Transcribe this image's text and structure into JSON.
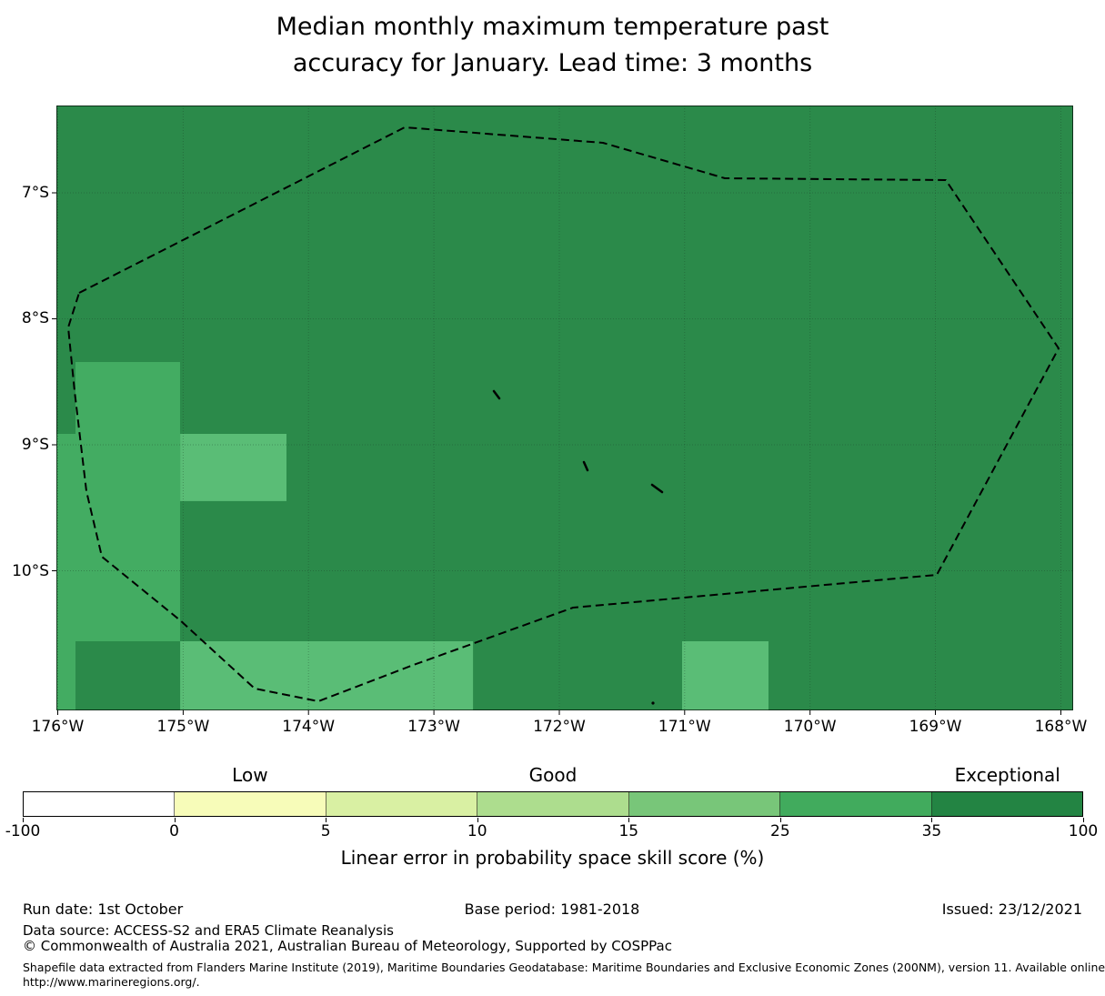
{
  "title": {
    "line1": "Median monthly maximum temperature past",
    "line2": "accuracy for January. Lead time: 3 months"
  },
  "chart_data": {
    "type": "heatmap",
    "title": "Median monthly maximum temperature past accuracy for January. Lead time: 3 months",
    "x_ticks": [
      {
        "label": "176°W",
        "f": 0.0013
      },
      {
        "label": "175°W",
        "f": 0.1247
      },
      {
        "label": "174°W",
        "f": 0.2479
      },
      {
        "label": "173°W",
        "f": 0.3713
      },
      {
        "label": "172°W",
        "f": 0.4946
      },
      {
        "label": "171°W",
        "f": 0.6179
      },
      {
        "label": "170°W",
        "f": 0.7412
      },
      {
        "label": "169°W",
        "f": 0.8645
      },
      {
        "label": "168°W",
        "f": 0.9879
      }
    ],
    "y_ticks": [
      {
        "label": "7°S",
        "f": 0.1444
      },
      {
        "label": "8°S",
        "f": 0.3526
      },
      {
        "label": "9°S",
        "f": 0.5609
      },
      {
        "label": "10°S",
        "f": 0.7692
      }
    ],
    "background": {
      "bin": "35-100",
      "skill_label": "Exceptional",
      "color": "#2b8a4a"
    },
    "cells": [
      {
        "x0": 0.0,
        "y0": 0.5429,
        "x1": 0.0188,
        "y1": 1.0,
        "bin": "25-35",
        "color": "#43ac62",
        "lon": "176.0-175.9°W",
        "lat": "8.9-11.1°S"
      },
      {
        "x0": 0.0188,
        "y0": 0.4241,
        "x1": 0.1217,
        "y1": 0.8857,
        "bin": "25-35",
        "color": "#43ac62",
        "lon": "175.9-175.0°W",
        "lat": "8.3-10.6°S"
      },
      {
        "x0": 0.1217,
        "y0": 0.5429,
        "x1": 0.2263,
        "y1": 0.6541,
        "bin": "15-25",
        "color": "#5abd76",
        "lon": "175.0-174.2°W",
        "lat": "8.9-9.5°S"
      },
      {
        "x0": 0.1217,
        "y0": 0.8857,
        "x1": 0.4097,
        "y1": 1.0,
        "bin": "15-25",
        "color": "#5abd76",
        "lon": "175.0-172.7°W",
        "lat": "10.6-11.1°S"
      },
      {
        "x0": 0.6154,
        "y0": 0.8857,
        "x1": 0.7004,
        "y1": 1.0,
        "bin": "15-25",
        "color": "#5abd76",
        "lon": "171.0-170.3°W",
        "lat": "10.6-11.1°S"
      }
    ],
    "eez_boundary_f": [
      [
        0.0224,
        0.3098
      ],
      [
        0.3426,
        0.0361
      ],
      [
        0.5376,
        0.0617
      ],
      [
        0.6575,
        0.1203
      ],
      [
        0.8748,
        0.1233
      ],
      [
        0.9857,
        0.4015
      ],
      [
        0.8658,
        0.7759
      ],
      [
        0.5081,
        0.8301
      ],
      [
        0.3488,
        0.9263
      ],
      [
        0.2576,
        0.985
      ],
      [
        0.195,
        0.9639
      ],
      [
        0.1217,
        0.8511
      ],
      [
        0.0447,
        0.7459
      ],
      [
        0.0295,
        0.6376
      ],
      [
        0.0179,
        0.4722
      ],
      [
        0.0116,
        0.3669
      ]
    ],
    "island_marks_f": [
      [
        0.4302,
        0.4722,
        0.4356,
        0.4842
      ],
      [
        0.5188,
        0.5895,
        0.5224,
        0.603
      ],
      [
        0.5859,
        0.6271,
        0.5957,
        0.6391
      ]
    ],
    "island_dot_f": [
      0.5868,
      0.988
    ],
    "grid": "on",
    "boundary_style": "black dashed (EEZ)"
  },
  "colorbar": {
    "caption": "Linear error in probability space skill score (%)",
    "segments": [
      {
        "from": "-100",
        "to": "0",
        "color": "#ffffff"
      },
      {
        "from": "0",
        "to": "5",
        "color": "#f7fcb9"
      },
      {
        "from": "5",
        "to": "10",
        "color": "#d9f0a3"
      },
      {
        "from": "10",
        "to": "15",
        "color": "#addd8e"
      },
      {
        "from": "15",
        "to": "25",
        "color": "#78c679"
      },
      {
        "from": "25",
        "to": "35",
        "color": "#41ab5d"
      },
      {
        "from": "35",
        "to": "100",
        "color": "#238443"
      }
    ],
    "tick_labels": [
      "-100",
      "0",
      "5",
      "10",
      "15",
      "25",
      "35",
      "100"
    ],
    "group_labels": [
      {
        "label": "Low",
        "f": 0.2143
      },
      {
        "label": "Good",
        "f": 0.5
      },
      {
        "label": "Exceptional",
        "f": 0.9286
      }
    ]
  },
  "footer": {
    "run_date": "Run date: 1st October",
    "base_period": "Base period: 1981-2018",
    "issued": "Issued: 23/12/2021",
    "data_source": "Data source: ACCESS-S2 and ERA5 Climate Reanalysis",
    "copyright": "© Commonwealth of Australia 2021, Australian Bureau of Meteorology, Supported by COSPPac",
    "shapefile_line1": "Shapefile data extracted from Flanders Marine Institute (2019), Maritime Boundaries Geodatabase: Maritime Boundaries and Exclusive Economic Zones (200NM), version 11. Available online at",
    "shapefile_line2": "http://www.marineregions.org/."
  }
}
